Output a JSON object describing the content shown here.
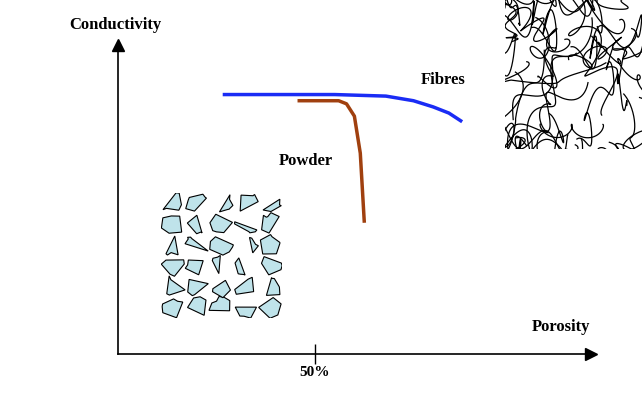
{
  "chart_data": {
    "type": "line",
    "x_label": "Porosity",
    "y_label": "Conductivity",
    "xlim": [
      0,
      120
    ],
    "ylim": [
      0,
      100
    ],
    "xticks": [
      {
        "value": 50,
        "label": "50%"
      }
    ],
    "tick_labels": "x",
    "series": [
      {
        "name": "Fibres",
        "color": "#1a2cf5",
        "x": [
          27,
          55,
          68,
          75,
          80,
          84,
          87
        ],
        "values": [
          84,
          84,
          83.5,
          82,
          80,
          78,
          75.5
        ]
      },
      {
        "name": "Powder",
        "color": "#a0400f",
        "x": [
          46,
          56,
          58,
          60,
          61.5,
          62.5
        ],
        "values": [
          82,
          82,
          81,
          77,
          65,
          43
        ]
      }
    ]
  }
}
